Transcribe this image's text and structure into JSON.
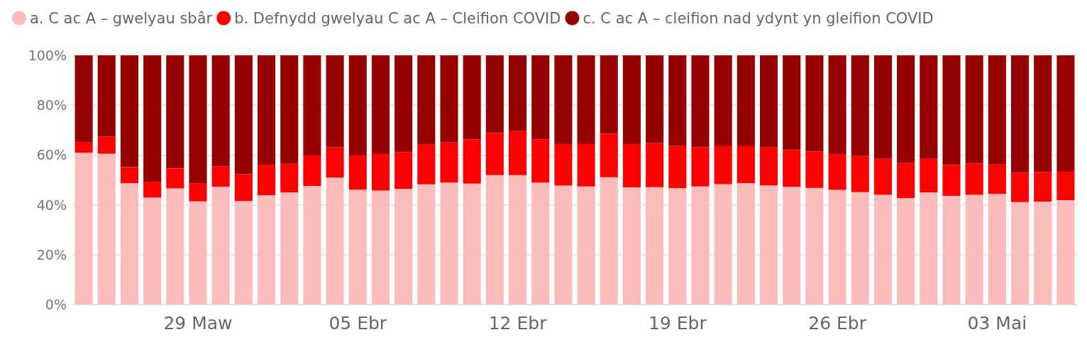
{
  "chart_data": {
    "type": "bar",
    "stacked": true,
    "categories": [
      null,
      null,
      null,
      null,
      null,
      "29 Maw",
      null,
      null,
      null,
      null,
      null,
      null,
      "05 Ebr",
      null,
      null,
      null,
      null,
      null,
      null,
      "12 Ebr",
      null,
      null,
      null,
      null,
      null,
      null,
      "19 Ebr",
      null,
      null,
      null,
      null,
      null,
      null,
      "26 Ebr",
      null,
      null,
      null,
      null,
      null,
      null,
      "03 Mai",
      null,
      null,
      null
    ],
    "series": [
      {
        "name": "a. C ac A – gwelyau sbâr",
        "color": "#fcbcbc",
        "values": [
          60.9,
          60.5,
          48.7,
          42.9,
          46.6,
          41.4,
          47.3,
          41.5,
          43.9,
          45.0,
          47.6,
          50.9,
          46.1,
          45.7,
          46.4,
          48.2,
          48.9,
          48.5,
          51.9,
          51.9,
          48.9,
          47.7,
          47.4,
          51.1,
          47.0,
          47.1,
          46.7,
          47.4,
          48.3,
          48.7,
          47.8,
          47.2,
          46.8,
          46.0,
          45.1,
          44.0,
          42.7,
          45.0,
          43.6,
          44.0,
          44.4,
          41.1,
          41.3,
          41.9
        ]
      },
      {
        "name": "b. Defnydd gwelyau C ac A – Cleifion COVID",
        "color": "#fe0000",
        "values": [
          4.3,
          6.9,
          6.4,
          6.4,
          8.0,
          7.3,
          8.2,
          10.8,
          12.2,
          11.5,
          12.2,
          12.3,
          13.7,
          14.7,
          14.8,
          16.0,
          16.1,
          17.8,
          17.0,
          17.7,
          17.4,
          16.7,
          17.0,
          17.4,
          17.4,
          17.7,
          16.9,
          15.7,
          15.2,
          14.8,
          15.2,
          14.8,
          14.7,
          14.4,
          14.5,
          14.5,
          14.1,
          13.5,
          12.4,
          12.6,
          11.8,
          11.8,
          11.9,
          11.4
        ]
      },
      {
        "name": "c. C ac A – cleifion nad ydynt yn gleifion COVID",
        "color": "#960000",
        "values": [
          34.8,
          32.6,
          44.9,
          50.7,
          45.4,
          51.3,
          44.5,
          47.7,
          43.9,
          43.5,
          40.2,
          36.8,
          40.2,
          39.6,
          38.8,
          35.8,
          35.0,
          33.7,
          31.1,
          30.4,
          33.7,
          35.6,
          35.6,
          31.5,
          35.6,
          35.2,
          36.4,
          36.9,
          36.5,
          36.5,
          37.0,
          38.0,
          38.5,
          39.6,
          40.4,
          41.5,
          43.2,
          41.5,
          44.0,
          43.4,
          43.8,
          47.1,
          46.8,
          46.7
        ]
      }
    ],
    "ylim": [
      0,
      100
    ],
    "yticks": [
      {
        "value": 0,
        "label": "0%"
      },
      {
        "value": 20,
        "label": "20%"
      },
      {
        "value": 40,
        "label": "40%"
      },
      {
        "value": 60,
        "label": "60%"
      },
      {
        "value": 80,
        "label": "80%"
      },
      {
        "value": 100,
        "label": "100%"
      }
    ],
    "grid": "y",
    "legend": "top left"
  }
}
